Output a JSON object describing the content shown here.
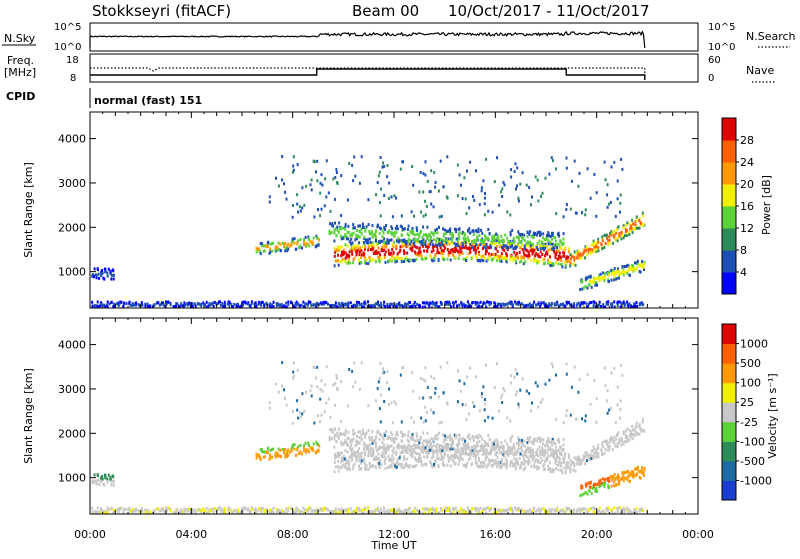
{
  "header": {
    "site": "Stokkseyri (fitACF)",
    "beam": "Beam 00",
    "dates": "10/Oct/2017 - 11/Oct/2017"
  },
  "status": {
    "nsky_label": "N.Sky",
    "nsky_ticks": [
      "10^5",
      "10^0"
    ],
    "nsearch_label": "N.Search",
    "nsearch_ticks": [
      "10^5",
      "10^0"
    ],
    "freq_label_1": "Freq.",
    "freq_label_2": "[MHz]",
    "freq_ticks": [
      "18",
      "8"
    ],
    "nave_label": "Nave",
    "nave_ticks": [
      "60",
      "0"
    ],
    "cpid_label": "CPID",
    "cpid_value": "normal (fast) 151"
  },
  "chart_data": [
    {
      "type": "heatmap",
      "name": "power",
      "ylabel": "Slant Range [km]",
      "ylim": [
        180,
        4600
      ],
      "yticks": [
        "1000",
        "2000",
        "3000",
        "4000"
      ],
      "xlim_hours": [
        0,
        24
      ],
      "xticks": [
        "00:00",
        "04:00",
        "08:00",
        "12:00",
        "16:00",
        "20:00",
        "00:00"
      ],
      "colorbar_label": "Power [dB]",
      "colorbar_ticks": [
        "4",
        "8",
        "12",
        "16",
        "20",
        "24",
        "28"
      ],
      "colors": [
        "#0000ff",
        "#1e4fb4",
        "#2e8b57",
        "#5cd13a",
        "#f0f000",
        "#ff9a00",
        "#ff6000",
        "#e00000"
      ]
    },
    {
      "type": "heatmap",
      "name": "velocity",
      "ylabel": "Slant Range [km]",
      "ylim": [
        180,
        4600
      ],
      "yticks": [
        "1000",
        "2000",
        "3000",
        "4000"
      ],
      "xlim_hours": [
        0,
        24
      ],
      "xticks": [
        "00:00",
        "04:00",
        "08:00",
        "12:00",
        "16:00",
        "20:00",
        "00:00"
      ],
      "xlabel": "Time UT",
      "colorbar_label": "Velocity [m s⁻¹]",
      "colorbar_ticks": [
        "1000",
        "500",
        "100",
        "25",
        "-25",
        "-100",
        "-500",
        "-1000"
      ],
      "colors": [
        "#1a3fd0",
        "#1e6aa0",
        "#2e8b57",
        "#5cd13a",
        "#c8c8c8",
        "#f0f000",
        "#ff9a00",
        "#ff6000",
        "#e00000"
      ]
    }
  ]
}
